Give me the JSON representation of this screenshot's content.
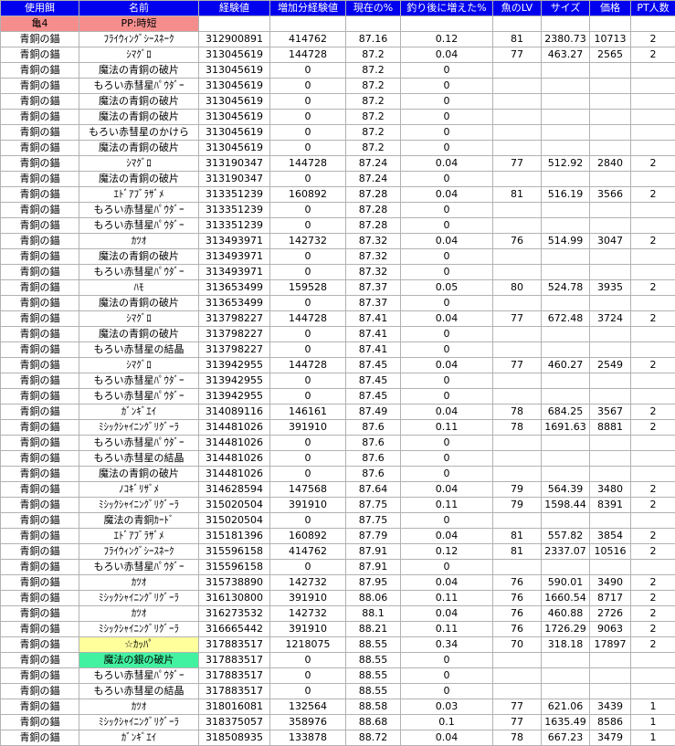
{
  "colors": {
    "header_bg": "#0000ee",
    "grid": "#b2b2b2",
    "pp_bg": "#f58d8d",
    "hl_yellow": "#ffff9c",
    "hl_green": "#42f2a0"
  },
  "table": {
    "header": [
      "使用餌",
      "名前",
      "経験値",
      "増加分経験値",
      "現在の%",
      "釣り後に増えた%",
      "魚のLV",
      "サイズ",
      "価格",
      "PT人数"
    ],
    "pp_row": {
      "bait": "亀4",
      "name": "PP:時短"
    },
    "rows": [
      {
        "bait": "青銅の錨",
        "name": "ﾌﾗｲｳｨﾝｸﾞｼｰｽﾈｰｸ",
        "exp": "312900891",
        "gain": "414762",
        "cur": "87.16",
        "inc": "0.12",
        "lv": "81",
        "size": "2380.73",
        "price": "10713",
        "pt": "2",
        "hl": ""
      },
      {
        "bait": "青銅の錨",
        "name": "ｼﾏｸﾞﾛ",
        "exp": "313045619",
        "gain": "144728",
        "cur": "87.2",
        "inc": "0.04",
        "lv": "77",
        "size": "463.27",
        "price": "2565",
        "pt": "2",
        "hl": ""
      },
      {
        "bait": "青銅の錨",
        "name": "魔法の青銅の破片",
        "exp": "313045619",
        "gain": "0",
        "cur": "87.2",
        "inc": "0",
        "lv": "",
        "size": "",
        "price": "",
        "pt": "",
        "hl": ""
      },
      {
        "bait": "青銅の錨",
        "name": "もろい赤彗星ﾊﾟｳﾀﾞｰ",
        "exp": "313045619",
        "gain": "0",
        "cur": "87.2",
        "inc": "0",
        "lv": "",
        "size": "",
        "price": "",
        "pt": "",
        "hl": ""
      },
      {
        "bait": "青銅の錨",
        "name": "魔法の青銅の破片",
        "exp": "313045619",
        "gain": "0",
        "cur": "87.2",
        "inc": "0",
        "lv": "",
        "size": "",
        "price": "",
        "pt": "",
        "hl": ""
      },
      {
        "bait": "青銅の錨",
        "name": "魔法の青銅の破片",
        "exp": "313045619",
        "gain": "0",
        "cur": "87.2",
        "inc": "0",
        "lv": "",
        "size": "",
        "price": "",
        "pt": "",
        "hl": ""
      },
      {
        "bait": "青銅の錨",
        "name": "もろい赤彗星のかけら",
        "exp": "313045619",
        "gain": "0",
        "cur": "87.2",
        "inc": "0",
        "lv": "",
        "size": "",
        "price": "",
        "pt": "",
        "hl": ""
      },
      {
        "bait": "青銅の錨",
        "name": "魔法の青銅の破片",
        "exp": "313045619",
        "gain": "0",
        "cur": "87.2",
        "inc": "0",
        "lv": "",
        "size": "",
        "price": "",
        "pt": "",
        "hl": ""
      },
      {
        "bait": "青銅の錨",
        "name": "ｼﾏｸﾞﾛ",
        "exp": "313190347",
        "gain": "144728",
        "cur": "87.24",
        "inc": "0.04",
        "lv": "77",
        "size": "512.92",
        "price": "2840",
        "pt": "2",
        "hl": ""
      },
      {
        "bait": "青銅の錨",
        "name": "魔法の青銅の破片",
        "exp": "313190347",
        "gain": "0",
        "cur": "87.24",
        "inc": "0",
        "lv": "",
        "size": "",
        "price": "",
        "pt": "",
        "hl": ""
      },
      {
        "bait": "青銅の錨",
        "name": "ｴﾄﾞｱﾌﾞﾗｻﾞﾒ",
        "exp": "313351239",
        "gain": "160892",
        "cur": "87.28",
        "inc": "0.04",
        "lv": "81",
        "size": "516.19",
        "price": "3566",
        "pt": "2",
        "hl": ""
      },
      {
        "bait": "青銅の錨",
        "name": "もろい赤彗星ﾊﾟｳﾀﾞｰ",
        "exp": "313351239",
        "gain": "0",
        "cur": "87.28",
        "inc": "0",
        "lv": "",
        "size": "",
        "price": "",
        "pt": "",
        "hl": ""
      },
      {
        "bait": "青銅の錨",
        "name": "もろい赤彗星ﾊﾟｳﾀﾞｰ",
        "exp": "313351239",
        "gain": "0",
        "cur": "87.28",
        "inc": "0",
        "lv": "",
        "size": "",
        "price": "",
        "pt": "",
        "hl": ""
      },
      {
        "bait": "青銅の錨",
        "name": "ｶﾂｵ",
        "exp": "313493971",
        "gain": "142732",
        "cur": "87.32",
        "inc": "0.04",
        "lv": "76",
        "size": "514.99",
        "price": "3047",
        "pt": "2",
        "hl": ""
      },
      {
        "bait": "青銅の錨",
        "name": "魔法の青銅の破片",
        "exp": "313493971",
        "gain": "0",
        "cur": "87.32",
        "inc": "0",
        "lv": "",
        "size": "",
        "price": "",
        "pt": "",
        "hl": ""
      },
      {
        "bait": "青銅の錨",
        "name": "もろい赤彗星ﾊﾟｳﾀﾞｰ",
        "exp": "313493971",
        "gain": "0",
        "cur": "87.32",
        "inc": "0",
        "lv": "",
        "size": "",
        "price": "",
        "pt": "",
        "hl": ""
      },
      {
        "bait": "青銅の錨",
        "name": "ﾊﾓ",
        "exp": "313653499",
        "gain": "159528",
        "cur": "87.37",
        "inc": "0.05",
        "lv": "80",
        "size": "524.78",
        "price": "3935",
        "pt": "2",
        "hl": ""
      },
      {
        "bait": "青銅の錨",
        "name": "魔法の青銅の破片",
        "exp": "313653499",
        "gain": "0",
        "cur": "87.37",
        "inc": "0",
        "lv": "",
        "size": "",
        "price": "",
        "pt": "",
        "hl": ""
      },
      {
        "bait": "青銅の錨",
        "name": "ｼﾏｸﾞﾛ",
        "exp": "313798227",
        "gain": "144728",
        "cur": "87.41",
        "inc": "0.04",
        "lv": "77",
        "size": "672.48",
        "price": "3724",
        "pt": "2",
        "hl": ""
      },
      {
        "bait": "青銅の錨",
        "name": "魔法の青銅の破片",
        "exp": "313798227",
        "gain": "0",
        "cur": "87.41",
        "inc": "0",
        "lv": "",
        "size": "",
        "price": "",
        "pt": "",
        "hl": ""
      },
      {
        "bait": "青銅の錨",
        "name": "もろい赤彗星の結晶",
        "exp": "313798227",
        "gain": "0",
        "cur": "87.41",
        "inc": "0",
        "lv": "",
        "size": "",
        "price": "",
        "pt": "",
        "hl": ""
      },
      {
        "bait": "青銅の錨",
        "name": "ｼﾏｸﾞﾛ",
        "exp": "313942955",
        "gain": "144728",
        "cur": "87.45",
        "inc": "0.04",
        "lv": "77",
        "size": "460.27",
        "price": "2549",
        "pt": "2",
        "hl": ""
      },
      {
        "bait": "青銅の錨",
        "name": "もろい赤彗星ﾊﾟｳﾀﾞｰ",
        "exp": "313942955",
        "gain": "0",
        "cur": "87.45",
        "inc": "0",
        "lv": "",
        "size": "",
        "price": "",
        "pt": "",
        "hl": ""
      },
      {
        "bait": "青銅の錨",
        "name": "もろい赤彗星ﾊﾟｳﾀﾞｰ",
        "exp": "313942955",
        "gain": "0",
        "cur": "87.45",
        "inc": "0",
        "lv": "",
        "size": "",
        "price": "",
        "pt": "",
        "hl": ""
      },
      {
        "bait": "青銅の錨",
        "name": "ｶﾞﾝｷﾞｴｲ",
        "exp": "314089116",
        "gain": "146161",
        "cur": "87.49",
        "inc": "0.04",
        "lv": "78",
        "size": "684.25",
        "price": "3567",
        "pt": "2",
        "hl": ""
      },
      {
        "bait": "青銅の錨",
        "name": "ﾐｼｯｸｼｬｲﾆﾝｸﾞﾘｸﾞｰﾗ",
        "exp": "314481026",
        "gain": "391910",
        "cur": "87.6",
        "inc": "0.11",
        "lv": "78",
        "size": "1691.63",
        "price": "8881",
        "pt": "2",
        "hl": ""
      },
      {
        "bait": "青銅の錨",
        "name": "もろい赤彗星ﾊﾟｳﾀﾞｰ",
        "exp": "314481026",
        "gain": "0",
        "cur": "87.6",
        "inc": "0",
        "lv": "",
        "size": "",
        "price": "",
        "pt": "",
        "hl": ""
      },
      {
        "bait": "青銅の錨",
        "name": "もろい赤彗星の結晶",
        "exp": "314481026",
        "gain": "0",
        "cur": "87.6",
        "inc": "0",
        "lv": "",
        "size": "",
        "price": "",
        "pt": "",
        "hl": ""
      },
      {
        "bait": "青銅の錨",
        "name": "魔法の青銅の破片",
        "exp": "314481026",
        "gain": "0",
        "cur": "87.6",
        "inc": "0",
        "lv": "",
        "size": "",
        "price": "",
        "pt": "",
        "hl": ""
      },
      {
        "bait": "青銅の錨",
        "name": "ﾉｺｷﾞﾘｻﾞﾒ",
        "exp": "314628594",
        "gain": "147568",
        "cur": "87.64",
        "inc": "0.04",
        "lv": "79",
        "size": "564.39",
        "price": "3480",
        "pt": "2",
        "hl": ""
      },
      {
        "bait": "青銅の錨",
        "name": "ﾐｼｯｸｼｬｲﾆﾝｸﾞﾘｸﾞｰﾗ",
        "exp": "315020504",
        "gain": "391910",
        "cur": "87.75",
        "inc": "0.11",
        "lv": "79",
        "size": "1598.44",
        "price": "8391",
        "pt": "2",
        "hl": ""
      },
      {
        "bait": "青銅の錨",
        "name": "魔法の青銅ｶｰﾄﾞ",
        "exp": "315020504",
        "gain": "0",
        "cur": "87.75",
        "inc": "0",
        "lv": "",
        "size": "",
        "price": "",
        "pt": "",
        "hl": ""
      },
      {
        "bait": "青銅の錨",
        "name": "ｴﾄﾞｱﾌﾞﾗｻﾞﾒ",
        "exp": "315181396",
        "gain": "160892",
        "cur": "87.79",
        "inc": "0.04",
        "lv": "81",
        "size": "557.82",
        "price": "3854",
        "pt": "2",
        "hl": ""
      },
      {
        "bait": "青銅の錨",
        "name": "ﾌﾗｲｳｨﾝｸﾞｼｰｽﾈｰｸ",
        "exp": "315596158",
        "gain": "414762",
        "cur": "87.91",
        "inc": "0.12",
        "lv": "81",
        "size": "2337.07",
        "price": "10516",
        "pt": "2",
        "hl": ""
      },
      {
        "bait": "青銅の錨",
        "name": "もろい赤彗星ﾊﾟｳﾀﾞｰ",
        "exp": "315596158",
        "gain": "0",
        "cur": "87.91",
        "inc": "0",
        "lv": "",
        "size": "",
        "price": "",
        "pt": "",
        "hl": ""
      },
      {
        "bait": "青銅の錨",
        "name": "ｶﾂｵ",
        "exp": "315738890",
        "gain": "142732",
        "cur": "87.95",
        "inc": "0.04",
        "lv": "76",
        "size": "590.01",
        "price": "3490",
        "pt": "2",
        "hl": ""
      },
      {
        "bait": "青銅の錨",
        "name": "ﾐｼｯｸｼｬｲﾆﾝｸﾞﾘｸﾞｰﾗ",
        "exp": "316130800",
        "gain": "391910",
        "cur": "88.06",
        "inc": "0.11",
        "lv": "76",
        "size": "1660.54",
        "price": "8717",
        "pt": "2",
        "hl": ""
      },
      {
        "bait": "青銅の錨",
        "name": "ｶﾂｵ",
        "exp": "316273532",
        "gain": "142732",
        "cur": "88.1",
        "inc": "0.04",
        "lv": "76",
        "size": "460.88",
        "price": "2726",
        "pt": "2",
        "hl": ""
      },
      {
        "bait": "青銅の錨",
        "name": "ﾐｼｯｸｼｬｲﾆﾝｸﾞﾘｸﾞｰﾗ",
        "exp": "316665442",
        "gain": "391910",
        "cur": "88.21",
        "inc": "0.11",
        "lv": "76",
        "size": "1726.29",
        "price": "9063",
        "pt": "2",
        "hl": ""
      },
      {
        "bait": "青銅の錨",
        "name": "☆ｶｯﾊﾟ",
        "exp": "317883517",
        "gain": "1218075",
        "cur": "88.55",
        "inc": "0.34",
        "lv": "70",
        "size": "318.18",
        "price": "17897",
        "pt": "2",
        "hl": "yellow"
      },
      {
        "bait": "青銅の錨",
        "name": "魔法の銀の破片",
        "exp": "317883517",
        "gain": "0",
        "cur": "88.55",
        "inc": "0",
        "lv": "",
        "size": "",
        "price": "",
        "pt": "",
        "hl": "green"
      },
      {
        "bait": "青銅の錨",
        "name": "もろい赤彗星ﾊﾟｳﾀﾞｰ",
        "exp": "317883517",
        "gain": "0",
        "cur": "88.55",
        "inc": "0",
        "lv": "",
        "size": "",
        "price": "",
        "pt": "",
        "hl": ""
      },
      {
        "bait": "青銅の錨",
        "name": "もろい赤彗星の結晶",
        "exp": "317883517",
        "gain": "0",
        "cur": "88.55",
        "inc": "0",
        "lv": "",
        "size": "",
        "price": "",
        "pt": "",
        "hl": ""
      },
      {
        "bait": "青銅の錨",
        "name": "ｶﾂｵ",
        "exp": "318016081",
        "gain": "132564",
        "cur": "88.58",
        "inc": "0.03",
        "lv": "77",
        "size": "621.06",
        "price": "3439",
        "pt": "1",
        "hl": ""
      },
      {
        "bait": "青銅の錨",
        "name": "ﾐｼｯｸｼｬｲﾆﾝｸﾞﾘｸﾞｰﾗ",
        "exp": "318375057",
        "gain": "358976",
        "cur": "88.68",
        "inc": "0.1",
        "lv": "77",
        "size": "1635.49",
        "price": "8586",
        "pt": "1",
        "hl": ""
      },
      {
        "bait": "青銅の錨",
        "name": "ｶﾞﾝｷﾞｴｲ",
        "exp": "318508935",
        "gain": "133878",
        "cur": "88.72",
        "inc": "0.04",
        "lv": "78",
        "size": "667.23",
        "price": "3479",
        "pt": "1",
        "hl": ""
      }
    ]
  }
}
